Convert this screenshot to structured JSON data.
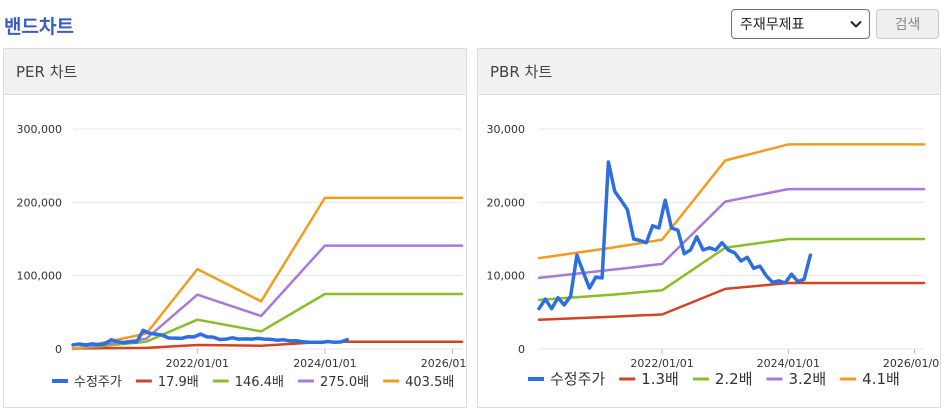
{
  "header": {
    "title": "밴드차트",
    "theme_select_value": "주재무제표",
    "search_label": "검색"
  },
  "panels": {
    "per_title": "PER 차트",
    "pbr_title": "PBR 차트"
  },
  "chart_data": [
    {
      "id": "per",
      "type": "line",
      "title": "PER 차트",
      "xlim": [
        2020.05,
        2026.15
      ],
      "ylim": [
        0,
        300000
      ],
      "yticks": [
        0,
        100000,
        200000,
        300000
      ],
      "ytick_labels": [
        "0",
        "100,000",
        "200,000",
        "300,000"
      ],
      "xticks": [
        2022.0,
        2024.0,
        2026.0
      ],
      "xtick_labels": [
        "2022/01/01",
        "2024/01/01",
        "2026/01/01"
      ],
      "legend_position": "bottom",
      "series": [
        {
          "name": "수정주가",
          "color": "#2e6fe0",
          "width": 3.5,
          "x": [
            2020.05,
            2020.15,
            2020.25,
            2020.35,
            2020.45,
            2020.55,
            2020.65,
            2020.75,
            2020.85,
            2020.95,
            2021.05,
            2021.15,
            2021.25,
            2021.35,
            2021.45,
            2021.55,
            2021.65,
            2021.75,
            2021.85,
            2021.95,
            2022.05,
            2022.15,
            2022.25,
            2022.35,
            2022.45,
            2022.55,
            2022.65,
            2022.75,
            2022.85,
            2022.95,
            2023.05,
            2023.15,
            2023.25,
            2023.35,
            2023.45,
            2023.55,
            2023.65,
            2023.75,
            2023.85,
            2023.95,
            2024.05,
            2024.15,
            2024.25,
            2024.35
          ],
          "y": [
            5500,
            6800,
            5500,
            7000,
            6000,
            7200,
            12500,
            10000,
            8500,
            9800,
            9700,
            25500,
            21500,
            20300,
            19000,
            15000,
            14800,
            14500,
            16800,
            16500,
            20300,
            16500,
            16200,
            13000,
            13500,
            15300,
            13500,
            13800,
            13500,
            14500,
            13500,
            13100,
            12000,
            12500,
            11000,
            11300,
            10000,
            9100,
            9300,
            9000,
            10200,
            9200,
            9500,
            12800
          ]
        },
        {
          "name": "17.9배",
          "color": "#d14424",
          "width": 2.5,
          "x": [
            2020.05,
            2021.2,
            2022.0,
            2023.0,
            2024.0,
            2026.15
          ],
          "y": [
            700,
            1500,
            5500,
            4500,
            10000,
            10000
          ]
        },
        {
          "name": "146.4배",
          "color": "#8bbd2a",
          "width": 2.5,
          "x": [
            2020.05,
            2021.2,
            2022.0,
            2023.0,
            2024.0,
            2026.15
          ],
          "y": [
            0,
            10000,
            40000,
            24000,
            75000,
            75000
          ]
        },
        {
          "name": "275.0배",
          "color": "#aa78d8",
          "width": 2.5,
          "x": [
            2020.05,
            2021.2,
            2022.0,
            2023.0,
            2024.0,
            2026.15
          ],
          "y": [
            0,
            14000,
            74000,
            45000,
            141000,
            141000
          ]
        },
        {
          "name": "403.5배",
          "color": "#f29c1f",
          "width": 2.5,
          "x": [
            2020.05,
            2021.2,
            2022.0,
            2023.0,
            2024.0,
            2026.15
          ],
          "y": [
            0,
            21000,
            109000,
            65000,
            206000,
            206000
          ]
        }
      ]
    },
    {
      "id": "pbr",
      "type": "line",
      "title": "PBR 차트",
      "xlim": [
        2020.05,
        2026.15
      ],
      "ylim": [
        0,
        30000
      ],
      "yticks": [
        0,
        10000,
        20000,
        30000
      ],
      "ytick_labels": [
        "0",
        "10,000",
        "20,000",
        "30,000"
      ],
      "xticks": [
        2022.0,
        2024.0,
        2026.0
      ],
      "xtick_labels": [
        "2022/01/01",
        "2024/01/01",
        "2026/01/01"
      ],
      "legend_position": "bottom",
      "series": [
        {
          "name": "수정주가",
          "color": "#2e6fe0",
          "width": 3.5,
          "x": [
            2020.05,
            2020.15,
            2020.25,
            2020.35,
            2020.45,
            2020.55,
            2020.65,
            2020.75,
            2020.85,
            2020.95,
            2021.05,
            2021.15,
            2021.25,
            2021.35,
            2021.45,
            2021.55,
            2021.65,
            2021.75,
            2021.85,
            2021.95,
            2022.05,
            2022.15,
            2022.25,
            2022.35,
            2022.45,
            2022.55,
            2022.65,
            2022.75,
            2022.85,
            2022.95,
            2023.05,
            2023.15,
            2023.25,
            2023.35,
            2023.45,
            2023.55,
            2023.65,
            2023.75,
            2023.85,
            2023.95,
            2024.05,
            2024.15,
            2024.25,
            2024.35
          ],
          "y": [
            5500,
            6800,
            5500,
            7000,
            6000,
            7200,
            12800,
            10500,
            8300,
            9800,
            9700,
            25500,
            21500,
            20300,
            19000,
            15000,
            14800,
            14500,
            16800,
            16500,
            20300,
            16500,
            16200,
            13000,
            13500,
            15300,
            13500,
            13800,
            13500,
            14500,
            13500,
            13100,
            12000,
            12500,
            11000,
            11300,
            10000,
            9100,
            9300,
            9000,
            10200,
            9200,
            9500,
            12800
          ]
        },
        {
          "name": "1.3배",
          "color": "#d14424",
          "width": 2.5,
          "x": [
            2020.05,
            2021.2,
            2022.0,
            2023.0,
            2024.0,
            2026.15
          ],
          "y": [
            4000,
            4400,
            4700,
            8200,
            9000,
            9000
          ]
        },
        {
          "name": "2.2배",
          "color": "#8bbd2a",
          "width": 2.5,
          "x": [
            2020.05,
            2021.2,
            2022.0,
            2023.0,
            2024.0,
            2026.15
          ],
          "y": [
            6700,
            7400,
            8000,
            13800,
            15000,
            15000
          ]
        },
        {
          "name": "3.2배",
          "color": "#aa78d8",
          "width": 2.5,
          "x": [
            2020.05,
            2021.2,
            2022.0,
            2023.0,
            2024.0,
            2026.15
          ],
          "y": [
            9700,
            10800,
            11600,
            20100,
            21800,
            21800
          ]
        },
        {
          "name": "4.1배",
          "color": "#f29c1f",
          "width": 2.5,
          "x": [
            2020.05,
            2021.2,
            2022.0,
            2023.0,
            2024.0,
            2026.15
          ],
          "y": [
            12400,
            13800,
            14900,
            25700,
            27900,
            27900
          ]
        }
      ]
    }
  ]
}
